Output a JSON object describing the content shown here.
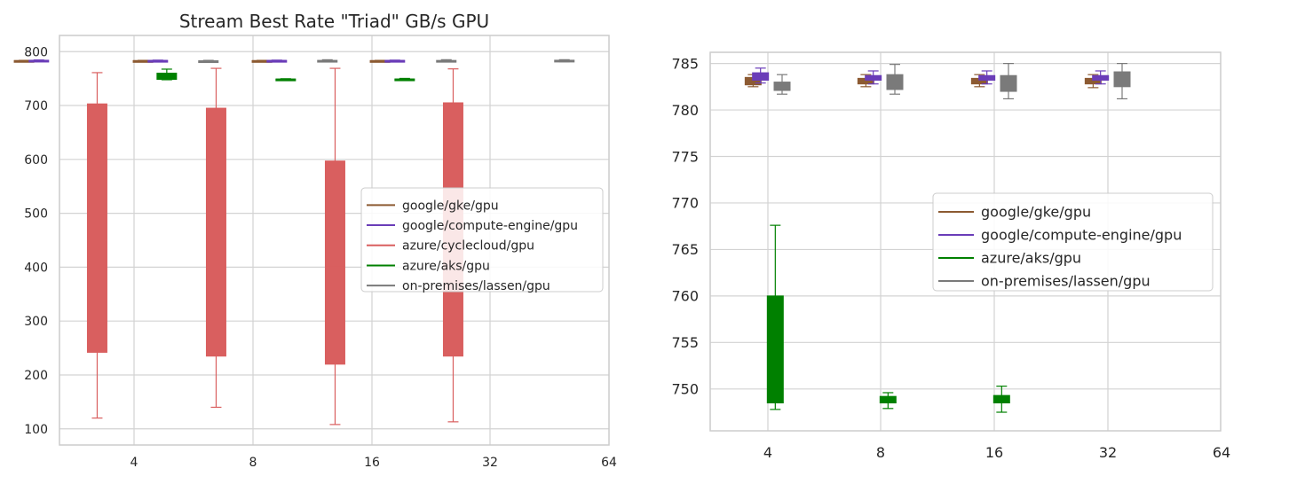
{
  "chart_data": [
    {
      "type": "box",
      "title": "Stream Best Rate \"Triad\" GB/s GPU",
      "categories": [
        "4",
        "8",
        "16",
        "32",
        "64"
      ],
      "ylim": [
        70,
        830
      ],
      "yticks": [
        100,
        200,
        300,
        400,
        500,
        600,
        700,
        800
      ],
      "ytick_labels": [
        "100",
        "200",
        "300",
        "400",
        "500",
        "600",
        "700",
        "800"
      ],
      "grid": true,
      "legend_location": "center-right",
      "legend": [
        {
          "name": "google/gke/gpu",
          "color": "#8c5a32"
        },
        {
          "name": "google/compute-engine/gpu",
          "color": "#6a3db8"
        },
        {
          "name": "azure/cyclecloud/gpu",
          "color": "#d95f5f"
        },
        {
          "name": "azure/aks/gpu",
          "color": "#008000"
        },
        {
          "name": "on-premises/lassen/gpu",
          "color": "#7a7a7a"
        }
      ],
      "boxes": [
        {
          "series": "google/gke/gpu",
          "group": "4",
          "offset": -1.85,
          "min": 782.5,
          "q1": 782.7,
          "median": 783.1,
          "q3": 783.5,
          "max": 783.8
        },
        {
          "series": "google/compute-engine/gpu",
          "group": "4",
          "offset": -1.6,
          "min": 782.9,
          "q1": 783.2,
          "median": 783.6,
          "q3": 784.0,
          "max": 784.5
        },
        {
          "series": "azure/cyclecloud/gpu",
          "group": "4",
          "offset": -0.62,
          "min": 120,
          "q1": 242,
          "median": 450,
          "q3": 703,
          "max": 761
        },
        {
          "series": "azure/aks/gpu",
          "group": "4",
          "offset": 0.55,
          "min": 747.8,
          "q1": 748.5,
          "median": 752,
          "q3": 760.0,
          "max": 767.5
        },
        {
          "series": "on-premises/lassen/gpu",
          "group": "4",
          "offset": 1.25,
          "min": 781.8,
          "q1": 782.1,
          "median": 782.6,
          "q3": 783.0,
          "max": 783.8
        },
        {
          "series": "google/gke/gpu",
          "group": "8",
          "offset": -1.85,
          "min": 782.5,
          "q1": 782.8,
          "median": 783.1,
          "q3": 783.4,
          "max": 783.8
        },
        {
          "series": "google/compute-engine/gpu",
          "group": "8",
          "offset": -1.6,
          "min": 782.8,
          "q1": 783.2,
          "median": 783.5,
          "q3": 783.7,
          "max": 784.2
        },
        {
          "series": "azure/cyclecloud/gpu",
          "group": "8",
          "offset": -0.62,
          "min": 140,
          "q1": 235,
          "median": 450,
          "q3": 695,
          "max": 769
        },
        {
          "series": "azure/aks/gpu",
          "group": "8",
          "offset": 0.55,
          "min": 747.9,
          "q1": 748.5,
          "median": 748.9,
          "q3": 749.2,
          "max": 749.7
        },
        {
          "series": "on-premises/lassen/gpu",
          "group": "8",
          "offset": 1.25,
          "min": 781.7,
          "q1": 782.2,
          "median": 783.0,
          "q3": 783.8,
          "max": 784.9
        },
        {
          "series": "google/gke/gpu",
          "group": "16",
          "offset": -1.85,
          "min": 782.5,
          "q1": 782.8,
          "median": 783.1,
          "q3": 783.4,
          "max": 783.8
        },
        {
          "series": "google/compute-engine/gpu",
          "group": "16",
          "offset": -1.6,
          "min": 782.8,
          "q1": 783.2,
          "median": 783.5,
          "q3": 783.7,
          "max": 784.2
        },
        {
          "series": "azure/cyclecloud/gpu",
          "group": "16",
          "offset": -0.62,
          "min": 108,
          "q1": 220,
          "median": 400,
          "q3": 597,
          "max": 769
        },
        {
          "series": "azure/aks/gpu",
          "group": "16",
          "offset": 0.55,
          "min": 747.5,
          "q1": 748.5,
          "median": 748.9,
          "q3": 749.3,
          "max": 750.3
        },
        {
          "series": "on-premises/lassen/gpu",
          "group": "16",
          "offset": 1.25,
          "min": 781.2,
          "q1": 782.0,
          "median": 783.0,
          "q3": 783.7,
          "max": 785.0
        },
        {
          "series": "google/gke/gpu",
          "group": "32",
          "offset": -1.85,
          "min": 782.4,
          "q1": 782.8,
          "median": 783.1,
          "q3": 783.4,
          "max": 783.8
        },
        {
          "series": "google/compute-engine/gpu",
          "group": "32",
          "offset": -1.6,
          "min": 782.8,
          "q1": 783.2,
          "median": 783.5,
          "q3": 783.7,
          "max": 784.2
        },
        {
          "series": "azure/cyclecloud/gpu",
          "group": "32",
          "offset": -0.62,
          "min": 113,
          "q1": 235,
          "median": 450,
          "q3": 705,
          "max": 768
        },
        {
          "series": "on-premises/lassen/gpu",
          "group": "32",
          "offset": 1.25,
          "min": 781.2,
          "q1": 782.5,
          "median": 783.3,
          "q3": 784.1,
          "max": 785.0
        }
      ]
    },
    {
      "type": "box",
      "title": "",
      "categories": [
        "4",
        "8",
        "16",
        "32",
        "64"
      ],
      "ylim": [
        745.5,
        786.2
      ],
      "yticks": [
        750,
        755,
        760,
        765,
        770,
        775,
        780,
        785
      ],
      "ytick_labels": [
        "750",
        "755",
        "760",
        "765",
        "770",
        "775",
        "780",
        "785"
      ],
      "grid": true,
      "legend_location": "center-right",
      "legend": [
        {
          "name": "google/gke/gpu",
          "color": "#8c5a32"
        },
        {
          "name": "google/compute-engine/gpu",
          "color": "#6a3db8"
        },
        {
          "name": "azure/aks/gpu",
          "color": "#008000"
        },
        {
          "name": "on-premises/lassen/gpu",
          "color": "#7a7a7a"
        }
      ],
      "boxes": [
        {
          "series": "google/gke/gpu",
          "group": "4",
          "offset": -0.26,
          "min": 782.5,
          "q1": 782.7,
          "median": 783.1,
          "q3": 783.5,
          "max": 783.8
        },
        {
          "series": "google/compute-engine/gpu",
          "group": "4",
          "offset": -0.13,
          "min": 782.9,
          "q1": 783.2,
          "median": 783.6,
          "q3": 784.0,
          "max": 784.5
        },
        {
          "series": "azure/aks/gpu",
          "group": "4",
          "offset": 0.13,
          "min": 747.8,
          "q1": 748.5,
          "median": 752,
          "q3": 760.0,
          "max": 767.6
        },
        {
          "series": "on-premises/lassen/gpu",
          "group": "4",
          "offset": 0.25,
          "min": 781.7,
          "q1": 782.1,
          "median": 782.6,
          "q3": 783.0,
          "max": 783.8
        },
        {
          "series": "google/gke/gpu",
          "group": "8",
          "offset": -0.26,
          "min": 782.5,
          "q1": 782.8,
          "median": 783.1,
          "q3": 783.4,
          "max": 783.8
        },
        {
          "series": "google/compute-engine/gpu",
          "group": "8",
          "offset": -0.13,
          "min": 782.8,
          "q1": 783.2,
          "median": 783.5,
          "q3": 783.7,
          "max": 784.2
        },
        {
          "series": "azure/aks/gpu",
          "group": "8",
          "offset": 0.13,
          "min": 747.9,
          "q1": 748.5,
          "median": 748.9,
          "q3": 749.2,
          "max": 749.6
        },
        {
          "series": "on-premises/lassen/gpu",
          "group": "8",
          "offset": 0.25,
          "min": 781.7,
          "q1": 782.2,
          "median": 783.0,
          "q3": 783.8,
          "max": 784.9
        },
        {
          "series": "google/gke/gpu",
          "group": "16",
          "offset": -0.26,
          "min": 782.5,
          "q1": 782.8,
          "median": 783.1,
          "q3": 783.4,
          "max": 783.8
        },
        {
          "series": "google/compute-engine/gpu",
          "group": "16",
          "offset": -0.13,
          "min": 782.8,
          "q1": 783.2,
          "median": 783.5,
          "q3": 783.7,
          "max": 784.2
        },
        {
          "series": "azure/aks/gpu",
          "group": "16",
          "offset": 0.13,
          "min": 747.5,
          "q1": 748.5,
          "median": 748.9,
          "q3": 749.3,
          "max": 750.3
        },
        {
          "series": "on-premises/lassen/gpu",
          "group": "16",
          "offset": 0.25,
          "min": 781.2,
          "q1": 782.0,
          "median": 783.0,
          "q3": 783.7,
          "max": 785.0
        },
        {
          "series": "google/gke/gpu",
          "group": "32",
          "offset": -0.26,
          "min": 782.4,
          "q1": 782.8,
          "median": 783.1,
          "q3": 783.4,
          "max": 783.8
        },
        {
          "series": "google/compute-engine/gpu",
          "group": "32",
          "offset": -0.13,
          "min": 782.8,
          "q1": 783.2,
          "median": 783.5,
          "q3": 783.7,
          "max": 784.2
        },
        {
          "series": "on-premises/lassen/gpu",
          "group": "32",
          "offset": 0.25,
          "min": 781.2,
          "q1": 782.5,
          "median": 783.3,
          "q3": 784.1,
          "max": 785.0
        }
      ]
    }
  ]
}
